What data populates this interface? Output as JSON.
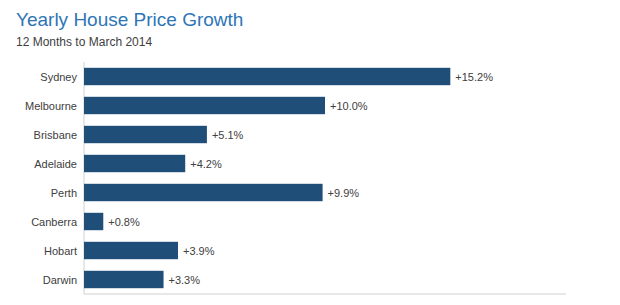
{
  "chart_data": {
    "type": "bar",
    "orientation": "horizontal",
    "title": "Yearly House Price Growth",
    "subtitle": "12 Months to March 2014",
    "categories": [
      "Sydney",
      "Melbourne",
      "Brisbane",
      "Adelaide",
      "Perth",
      "Canberra",
      "Hobart",
      "Darwin"
    ],
    "values": [
      15.2,
      10.0,
      5.1,
      4.2,
      9.9,
      0.8,
      3.9,
      3.3
    ],
    "value_labels": [
      "+15.2%",
      "+10.0%",
      "+5.1%",
      "+4.2%",
      "+9.9%",
      "+0.8%",
      "+3.9%",
      "+3.3%"
    ],
    "data_labels": true,
    "color": "#1f4e79",
    "xlim": [
      0,
      20
    ],
    "tick_labels": "y",
    "grid": false
  }
}
